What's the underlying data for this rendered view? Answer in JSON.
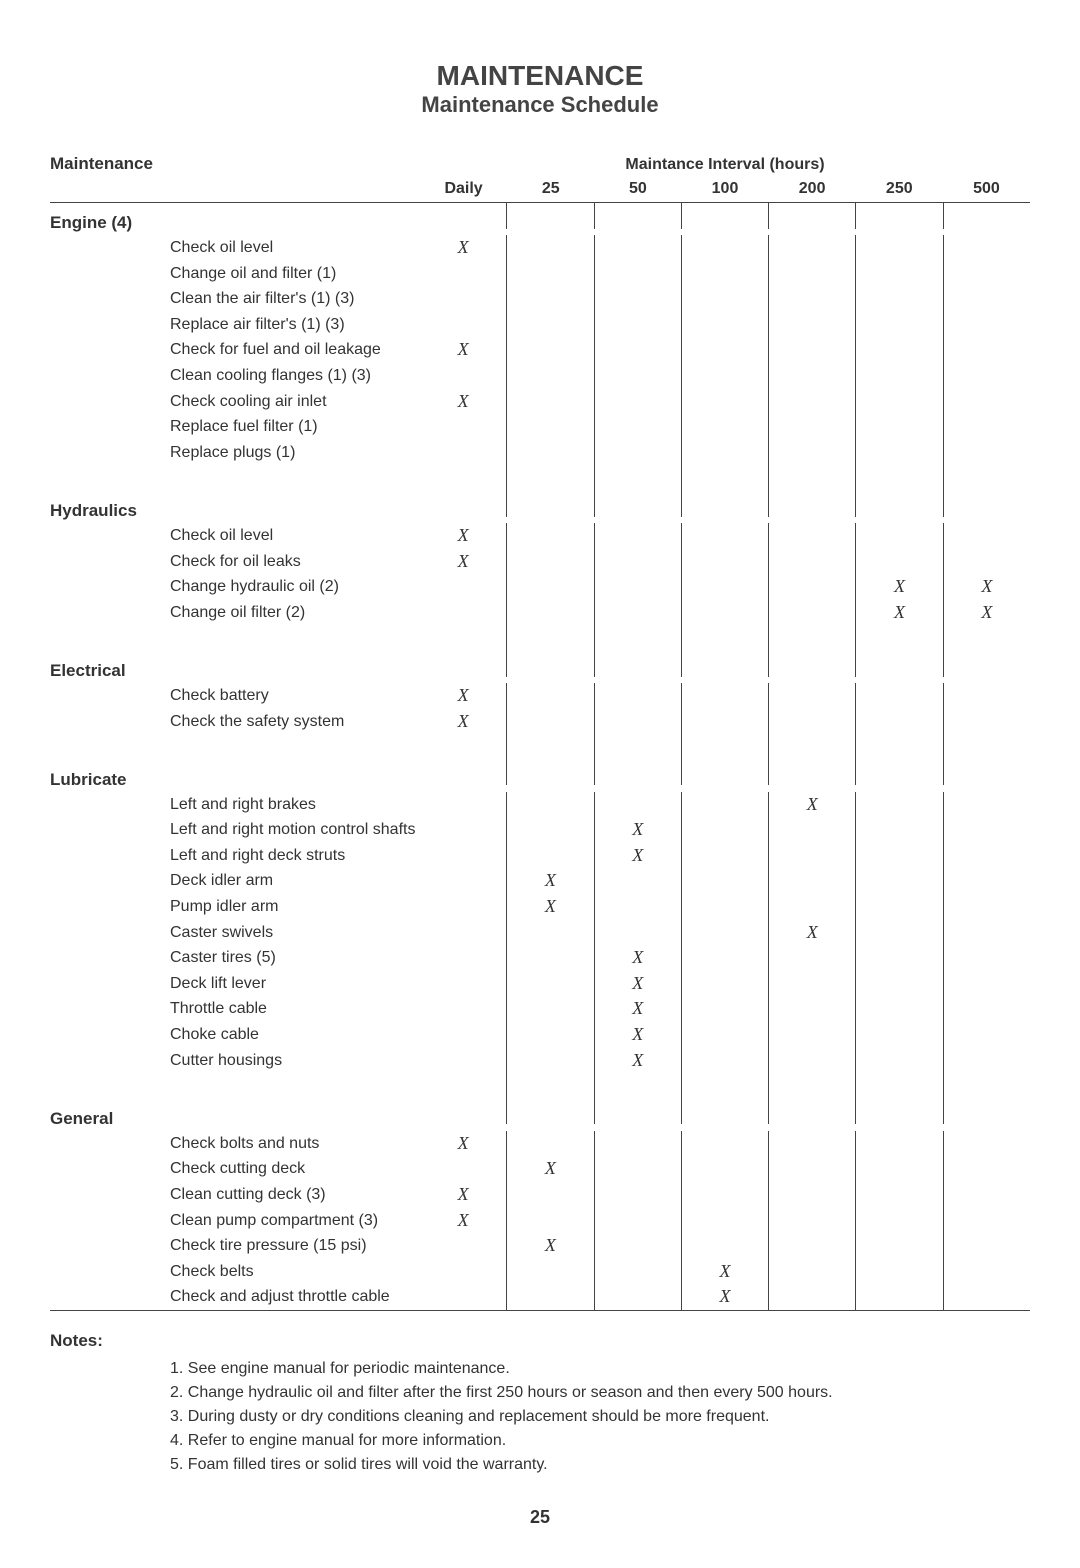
{
  "title": "MAINTENANCE",
  "subtitle": "Maintenance Schedule",
  "header": {
    "left": "Maintenance",
    "intervalTitle": "Maintance Interval (hours)",
    "columns": [
      "Daily",
      "25",
      "50",
      "100",
      "200",
      "250",
      "500"
    ]
  },
  "sections": [
    {
      "name": "Engine (4)",
      "rows": [
        {
          "task": "Check oil level",
          "marks": [
            "X",
            "",
            "",
            "",
            "",
            "",
            ""
          ]
        },
        {
          "task": "Change oil and filter (1)",
          "marks": [
            "",
            "",
            "",
            "",
            "",
            "",
            ""
          ]
        },
        {
          "task": "Clean the air filter's (1) (3)",
          "marks": [
            "",
            "",
            "",
            "",
            "",
            "",
            ""
          ]
        },
        {
          "task": "Replace air filter's  (1) (3)",
          "marks": [
            "",
            "",
            "",
            "",
            "",
            "",
            ""
          ]
        },
        {
          "task": "Check for fuel and oil leakage",
          "marks": [
            "X",
            "",
            "",
            "",
            "",
            "",
            ""
          ]
        },
        {
          "task": "Clean cooling flanges  (1) (3)",
          "marks": [
            "",
            "",
            "",
            "",
            "",
            "",
            ""
          ]
        },
        {
          "task": "Check cooling air inlet",
          "marks": [
            "X",
            "",
            "",
            "",
            "",
            "",
            ""
          ]
        },
        {
          "task": "Replace fuel filter  (1)",
          "marks": [
            "",
            "",
            "",
            "",
            "",
            "",
            ""
          ]
        },
        {
          "task": "Replace plugs  (1)",
          "marks": [
            "",
            "",
            "",
            "",
            "",
            "",
            ""
          ]
        }
      ]
    },
    {
      "name": "Hydraulics",
      "rows": [
        {
          "task": "Check oil level",
          "marks": [
            "X",
            "",
            "",
            "",
            "",
            "",
            ""
          ]
        },
        {
          "task": "Check for oil leaks",
          "marks": [
            "X",
            "",
            "",
            "",
            "",
            "",
            ""
          ]
        },
        {
          "task": "Change hydraulic oil (2)",
          "marks": [
            "",
            "",
            "",
            "",
            "",
            "X",
            "X"
          ]
        },
        {
          "task": "Change oil filter (2)",
          "marks": [
            "",
            "",
            "",
            "",
            "",
            "X",
            "X"
          ]
        }
      ]
    },
    {
      "name": "Electrical",
      "rows": [
        {
          "task": "Check battery",
          "marks": [
            "X",
            "",
            "",
            "",
            "",
            "",
            ""
          ]
        },
        {
          "task": "Check the safety system",
          "marks": [
            "X",
            "",
            "",
            "",
            "",
            "",
            ""
          ]
        }
      ]
    },
    {
      "name": "Lubricate",
      "rows": [
        {
          "task": "Left and right brakes",
          "marks": [
            "",
            "",
            "",
            "",
            "X",
            "",
            ""
          ]
        },
        {
          "task": "Left and right motion control shafts",
          "marks": [
            "",
            "",
            "X",
            "",
            "",
            "",
            ""
          ]
        },
        {
          "task": "Left and right deck struts",
          "marks": [
            "",
            "",
            "X",
            "",
            "",
            "",
            ""
          ]
        },
        {
          "task": "Deck idler arm",
          "marks": [
            "",
            "X",
            "",
            "",
            "",
            "",
            ""
          ]
        },
        {
          "task": "Pump idler arm",
          "marks": [
            "",
            "X",
            "",
            "",
            "",
            "",
            ""
          ]
        },
        {
          "task": "Caster swivels",
          "marks": [
            "",
            "",
            "",
            "",
            "X",
            "",
            ""
          ]
        },
        {
          "task": "Caster tires (5)",
          "marks": [
            "",
            "",
            "X",
            "",
            "",
            "",
            ""
          ]
        },
        {
          "task": "Deck lift lever",
          "marks": [
            "",
            "",
            "X",
            "",
            "",
            "",
            ""
          ]
        },
        {
          "task": "Throttle cable",
          "marks": [
            "",
            "",
            "X",
            "",
            "",
            "",
            ""
          ]
        },
        {
          "task": "Choke cable",
          "marks": [
            "",
            "",
            "X",
            "",
            "",
            "",
            ""
          ]
        },
        {
          "task": "Cutter housings",
          "marks": [
            "",
            "",
            "X",
            "",
            "",
            "",
            ""
          ]
        }
      ]
    },
    {
      "name": "General",
      "rows": [
        {
          "task": "Check bolts and nuts",
          "marks": [
            "X",
            "",
            "",
            "",
            "",
            "",
            ""
          ]
        },
        {
          "task": "Check cutting deck",
          "marks": [
            "",
            "X",
            "",
            "",
            "",
            "",
            ""
          ]
        },
        {
          "task": "Clean cutting deck (3)",
          "marks": [
            "X",
            "",
            "",
            "",
            "",
            "",
            ""
          ]
        },
        {
          "task": "Clean pump compartment (3)",
          "marks": [
            "X",
            "",
            "",
            "",
            "",
            "",
            ""
          ]
        },
        {
          "task": "Check tire pressure (15 psi)",
          "marks": [
            "",
            "X",
            "",
            "",
            "",
            "",
            ""
          ]
        },
        {
          "task": "Check belts",
          "marks": [
            "",
            "",
            "",
            "X",
            "",
            "",
            ""
          ]
        },
        {
          "task": "Check and adjust throttle cable",
          "marks": [
            "",
            "",
            "",
            "X",
            "",
            "",
            ""
          ]
        }
      ]
    }
  ],
  "notesTitle": "Notes:",
  "notes": [
    "1. See engine manual for periodic maintenance.",
    "2. Change hydraulic oil and filter after the first 250 hours or season and then every 500 hours.",
    "3. During dusty or dry conditions cleaning and replacement should be more frequent.",
    "4. Refer to engine manual for more information.",
    "5. Foam filled tires or solid tires will void the warranty."
  ],
  "pageNumber": "25"
}
